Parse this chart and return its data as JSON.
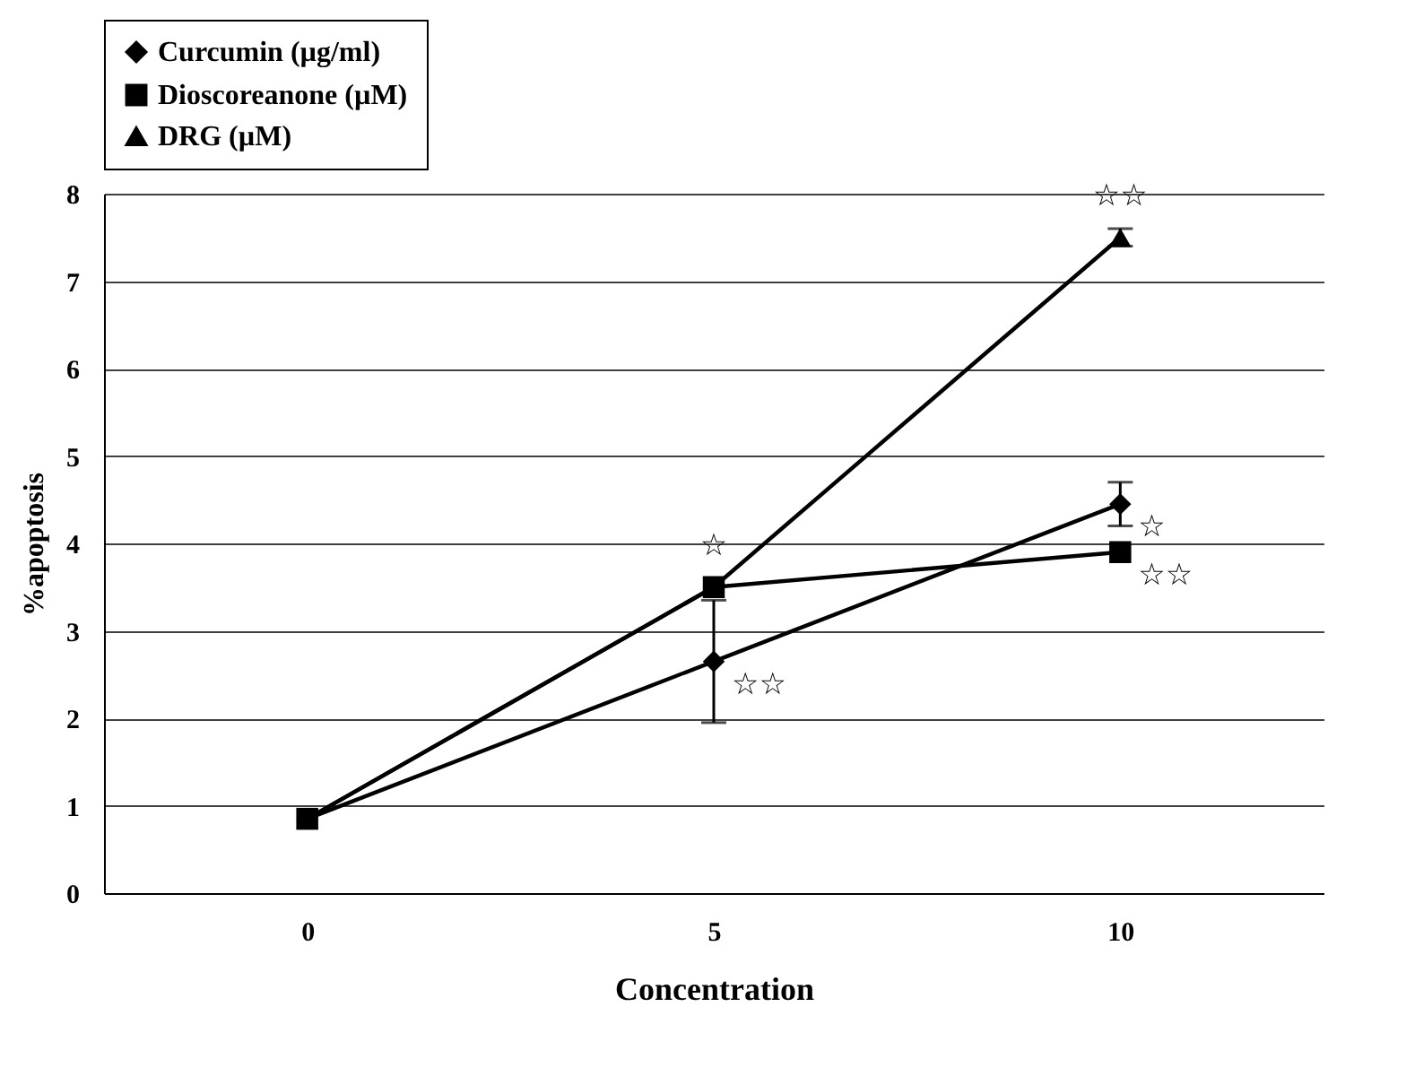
{
  "chart_data": {
    "type": "line",
    "xlabel": "Concentration",
    "ylabel": "%apoptosis",
    "categories": [
      "0",
      "5",
      "10"
    ],
    "ylim": [
      0,
      8
    ],
    "yticks": [
      0,
      1,
      2,
      3,
      4,
      5,
      6,
      7,
      8
    ],
    "grid": "y",
    "legend": "top",
    "series": [
      {
        "name": "Curcumin (µg/ml)",
        "color": "#000000",
        "marker": "diamond",
        "values": [
          0.85,
          2.65,
          4.45
        ],
        "errors": [
          null,
          0.7,
          0.25
        ]
      },
      {
        "name": "Dioscoreanone (µM)",
        "color": "#000000",
        "marker": "square",
        "values": [
          0.85,
          3.5,
          3.9
        ]
      },
      {
        "name": "DRG (µM)",
        "color": "#000000",
        "marker": "triangle",
        "values": [
          0.85,
          3.5,
          7.5
        ],
        "errors": [
          null,
          null,
          0.1
        ]
      }
    ],
    "annotations": [
      {
        "text": "☆",
        "x": "5",
        "y": 3.5
      },
      {
        "text": "☆☆",
        "x": "5",
        "y": 2.65
      },
      {
        "text": "☆☆",
        "x": "10",
        "y": 7.5
      },
      {
        "text": "☆",
        "x": "10",
        "y": 4.45
      },
      {
        "text": "☆☆",
        "x": "10",
        "y": 3.9
      }
    ]
  }
}
